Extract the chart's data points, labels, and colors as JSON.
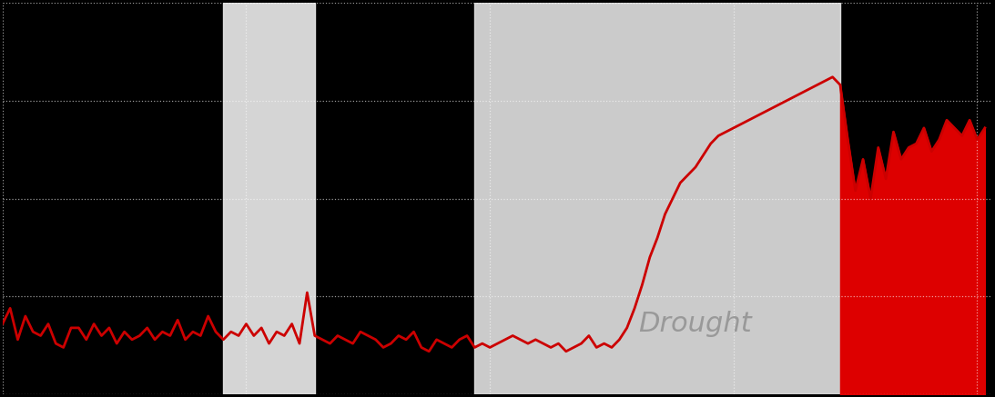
{
  "background_color": "#000000",
  "plot_bg_color": "#000000",
  "line_color": "#cc0000",
  "fill_color": "#dd0000",
  "grid_color": "#ffffff",
  "drought_label_color": "#999999",
  "highlight_color": "#e8e8e8",
  "highlight1_alpha": 0.92,
  "highlight2_alpha": 0.88,
  "drought_label": "Drought",
  "drought_label_fontsize": 22,
  "figsize": [
    10.93,
    4.37
  ],
  "dpi": 100,
  "ylim": [
    0,
    100
  ],
  "xlim": [
    0,
    130
  ],
  "years_data": [
    18,
    22,
    14,
    20,
    16,
    15,
    18,
    13,
    12,
    17,
    17,
    14,
    18,
    15,
    17,
    13,
    16,
    14,
    15,
    17,
    14,
    16,
    15,
    19,
    14,
    16,
    15,
    20,
    16,
    14,
    16,
    15,
    18,
    15,
    17,
    13,
    16,
    15,
    18,
    13,
    26,
    15,
    14,
    13,
    15,
    14,
    13,
    16,
    15,
    14,
    12,
    13,
    15,
    14,
    16,
    12,
    11,
    14,
    13,
    12,
    14,
    15,
    12,
    13,
    12,
    13,
    14,
    15,
    14,
    13,
    14,
    13,
    12,
    13,
    11,
    12,
    13,
    15,
    12,
    13,
    12,
    14,
    17,
    22,
    28,
    35,
    40,
    46,
    50,
    54,
    56,
    58,
    61,
    64,
    66,
    67,
    68,
    69,
    70,
    71,
    72,
    73,
    74,
    75,
    76,
    77,
    78,
    79,
    80,
    81,
    79,
    65,
    52,
    60,
    50,
    63,
    55,
    67,
    60,
    63,
    64,
    68,
    62,
    65,
    70,
    68,
    66,
    70,
    65,
    68
  ],
  "shade1_start": 29,
  "shade1_end": 41,
  "shade2_start": 62,
  "shade2_end": 110,
  "fill_start_idx": 110,
  "n_points": 130
}
